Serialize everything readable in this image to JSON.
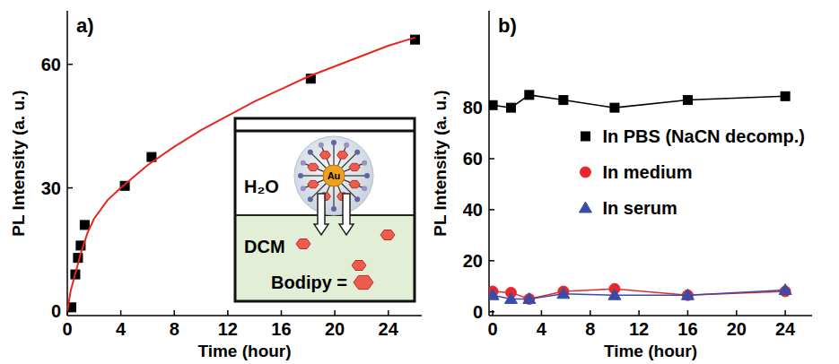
{
  "chart_data": [
    {
      "type": "scatter",
      "title": "a)",
      "x_label": "Time (hour)",
      "y_label": "PL Intensity (a. u.)",
      "xlim": [
        0,
        26.5
      ],
      "ylim": [
        -1,
        73
      ],
      "xticks": [
        0,
        4,
        8,
        12,
        16,
        20,
        24
      ],
      "yticks": [
        0,
        30,
        60
      ],
      "annotations": [
        "H₂O",
        "DCM",
        "Au",
        "Bodipy ="
      ],
      "series": [
        {
          "color": "#000000",
          "marker": "square",
          "x": [
            0.3,
            0.6,
            0.8,
            1.0,
            1.3,
            4.3,
            6.3,
            18.2,
            26.0
          ],
          "values": [
            1,
            9,
            13,
            16,
            21,
            30.5,
            37.5,
            56.5,
            66
          ]
        },
        {
          "type": "line",
          "color": "#e8261d",
          "line_style": "solid",
          "x": [
            0,
            0.25,
            0.5,
            1,
            1.5,
            2,
            3,
            4,
            6,
            8,
            10,
            12,
            14,
            16,
            18,
            20,
            22,
            24,
            26
          ],
          "values": [
            0,
            5,
            8,
            14,
            19,
            22.5,
            27,
            30,
            35.5,
            40,
            44,
            47.5,
            51,
            54,
            57,
            59.5,
            62,
            64.5,
            66.5
          ]
        }
      ]
    },
    {
      "type": "line",
      "title": "b)",
      "x_label": "Time (hour)",
      "y_label": "PL Intensity (a. u.)",
      "xlim": [
        -0.3,
        26.2
      ],
      "ylim": [
        -1.5,
        118
      ],
      "xticks": [
        0,
        4,
        8,
        12,
        16,
        20,
        24
      ],
      "yticks": [
        0,
        20,
        40,
        60,
        80
      ],
      "legend": "center right",
      "x": [
        0,
        1.5,
        3,
        5.8,
        10,
        16,
        24
      ],
      "series": [
        {
          "name": "In PBS (NaCN decomp.)",
          "color": "#000000",
          "marker": "square",
          "values": [
            81,
            80,
            85,
            83,
            80,
            83,
            84.5
          ]
        },
        {
          "name": "In medium",
          "color": "#e8262b",
          "marker": "circle",
          "values": [
            8,
            7.5,
            5,
            8,
            9,
            6.5,
            8
          ]
        },
        {
          "name": "In serum",
          "color": "#3b4ba8",
          "marker": "triangle",
          "values": [
            6.5,
            5,
            5,
            7,
            6.5,
            6.5,
            8.5
          ]
        }
      ]
    }
  ]
}
